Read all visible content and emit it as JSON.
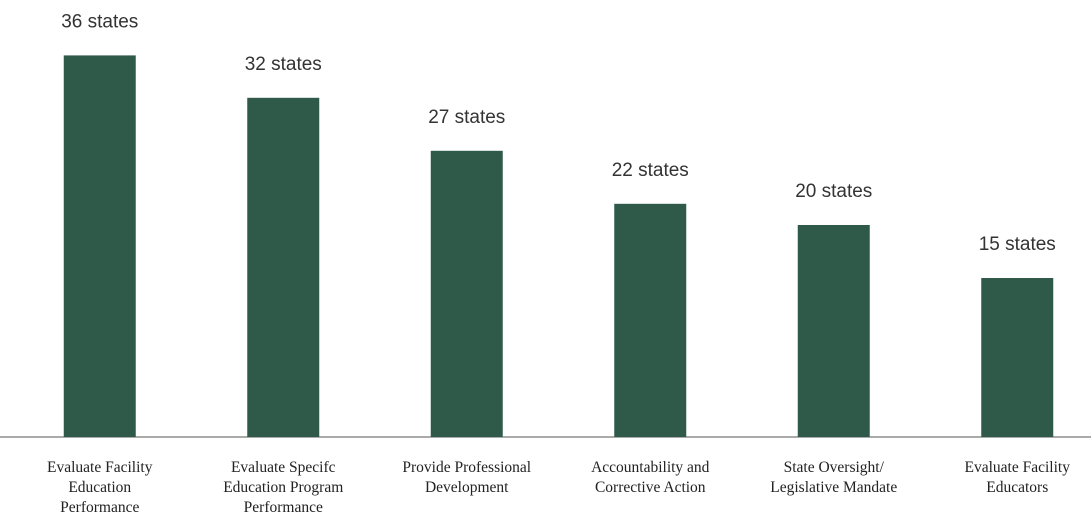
{
  "chart_data": {
    "type": "bar",
    "categories": [
      "Evaluate Facility\nEducation\nPerformance",
      "Evaluate Specifc\nEducation Program\nPerformance",
      "Provide Professional\nDevelopment",
      "Accountability and\nCorrective Action",
      "State Oversight/\nLegislative Mandate",
      "Evaluate Facility\nEducators"
    ],
    "values": [
      36,
      32,
      27,
      22,
      20,
      15
    ],
    "value_labels": [
      "36 states",
      "32 states",
      "27 states",
      "22 states",
      "20 states",
      "15 states"
    ],
    "color": "#2f5a4a"
  }
}
